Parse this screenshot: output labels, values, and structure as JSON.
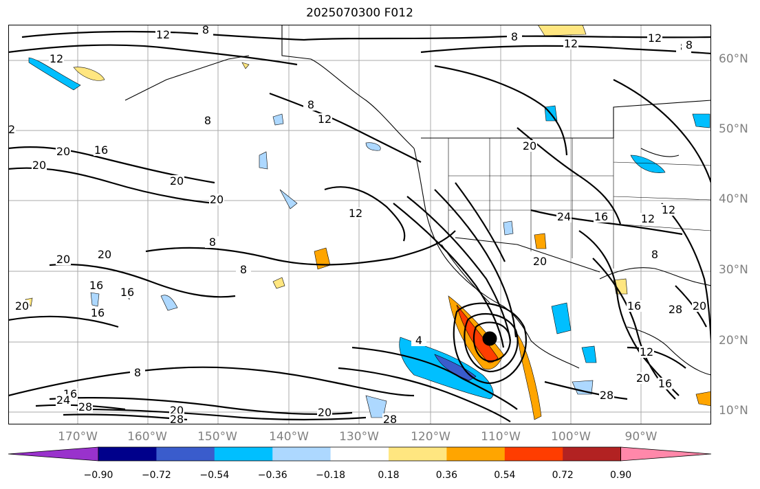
{
  "title": "2025070300 F012",
  "map": {
    "projection": "plate-carree",
    "lon_range": [
      -180,
      -82
    ],
    "lat_range": [
      7,
      65
    ],
    "grid": true,
    "lat_labels": [
      "60°N",
      "50°N",
      "40°N",
      "30°N",
      "20°N",
      "10°N"
    ],
    "lon_labels": [
      "170°W",
      "160°W",
      "150°W",
      "140°W",
      "130°W",
      "120°W",
      "110°W",
      "100°W",
      "90°W"
    ],
    "contour_labels": [
      "8",
      "12",
      "16",
      "20",
      "24",
      "28",
      "4"
    ],
    "storm_center": {
      "lon": -109.7,
      "lat": 20.2
    }
  },
  "colorbar": {
    "ticks": [
      "−0.90",
      "−0.72",
      "−0.54",
      "−0.36",
      "−0.18",
      "0.18",
      "0.36",
      "0.54",
      "0.72",
      "0.90"
    ],
    "colors": [
      "#9932cc",
      "#00008b",
      "#3a5ccc",
      "#00bfff",
      "#add8ff",
      "#ffffff",
      "#ffe680",
      "#ffa500",
      "#ff3d00",
      "#b22222",
      "#ff88aa"
    ]
  }
}
